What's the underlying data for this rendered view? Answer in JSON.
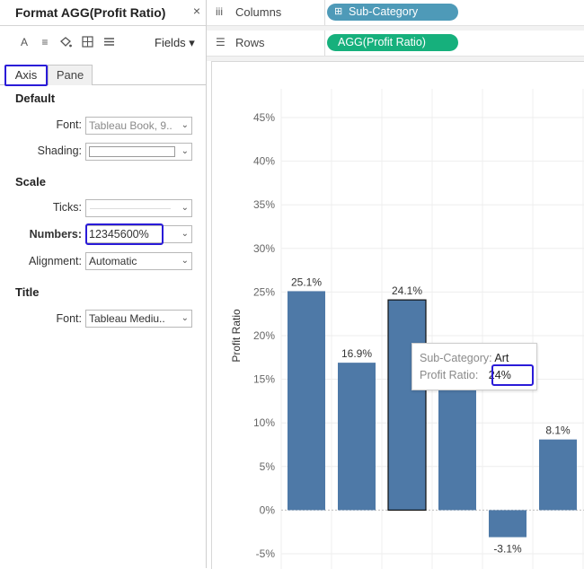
{
  "panel": {
    "title": "Format AGG(Profit Ratio)",
    "close": "×",
    "toolbar": {
      "icons": [
        "font-icon",
        "alignment-icon",
        "shading-icon",
        "borders-icon",
        "lines-icon"
      ],
      "fields_label": "Fields ▾"
    },
    "tabs": [
      {
        "label": "Axis",
        "active": true
      },
      {
        "label": "Pane",
        "active": false
      }
    ],
    "default": {
      "heading": "Default",
      "font_label": "Font:",
      "font_value": "Tableau Book, 9..",
      "shading_label": "Shading:"
    },
    "scale": {
      "heading": "Scale",
      "ticks_label": "Ticks:",
      "numbers_label": "Numbers:",
      "numbers_value": "12345600%",
      "alignment_label": "Alignment:",
      "alignment_value": "Automatic"
    },
    "title_section": {
      "heading": "Title",
      "font_label": "Font:",
      "font_value": "Tableau Mediu.."
    }
  },
  "shelves": {
    "columns_label": "Columns",
    "columns_pill": "Sub-Category",
    "rows_label": "Rows",
    "rows_pill": "AGG(Profit Ratio)"
  },
  "tooltip": {
    "line1_label": "Sub-Category:",
    "line1_value": "Art",
    "line2_label": "Profit Ratio:",
    "line2_value": "24%"
  },
  "colors": {
    "bar": "#4e79a7",
    "columns_pill": "#4e9ab8",
    "rows_pill": "#16b07c",
    "highlight": "#2a1bd8"
  },
  "chart_data": {
    "type": "bar",
    "ylabel": "Profit Ratio",
    "ylim": [
      -5,
      45
    ],
    "yticks": [
      45,
      40,
      35,
      30,
      25,
      20,
      15,
      10,
      5,
      0,
      -5
    ],
    "ytick_labels": [
      "45%",
      "40%",
      "35%",
      "30%",
      "25%",
      "20%",
      "15%",
      "10%",
      "5%",
      "0%",
      "-5%"
    ],
    "values": [
      25.1,
      16.9,
      24.1,
      15.5,
      -3.1,
      8.1
    ],
    "labels": [
      "25.1%",
      "16.9%",
      "24.1%",
      "",
      "-3.1%",
      "8.1%"
    ],
    "selected_index": 2,
    "grid": true
  }
}
